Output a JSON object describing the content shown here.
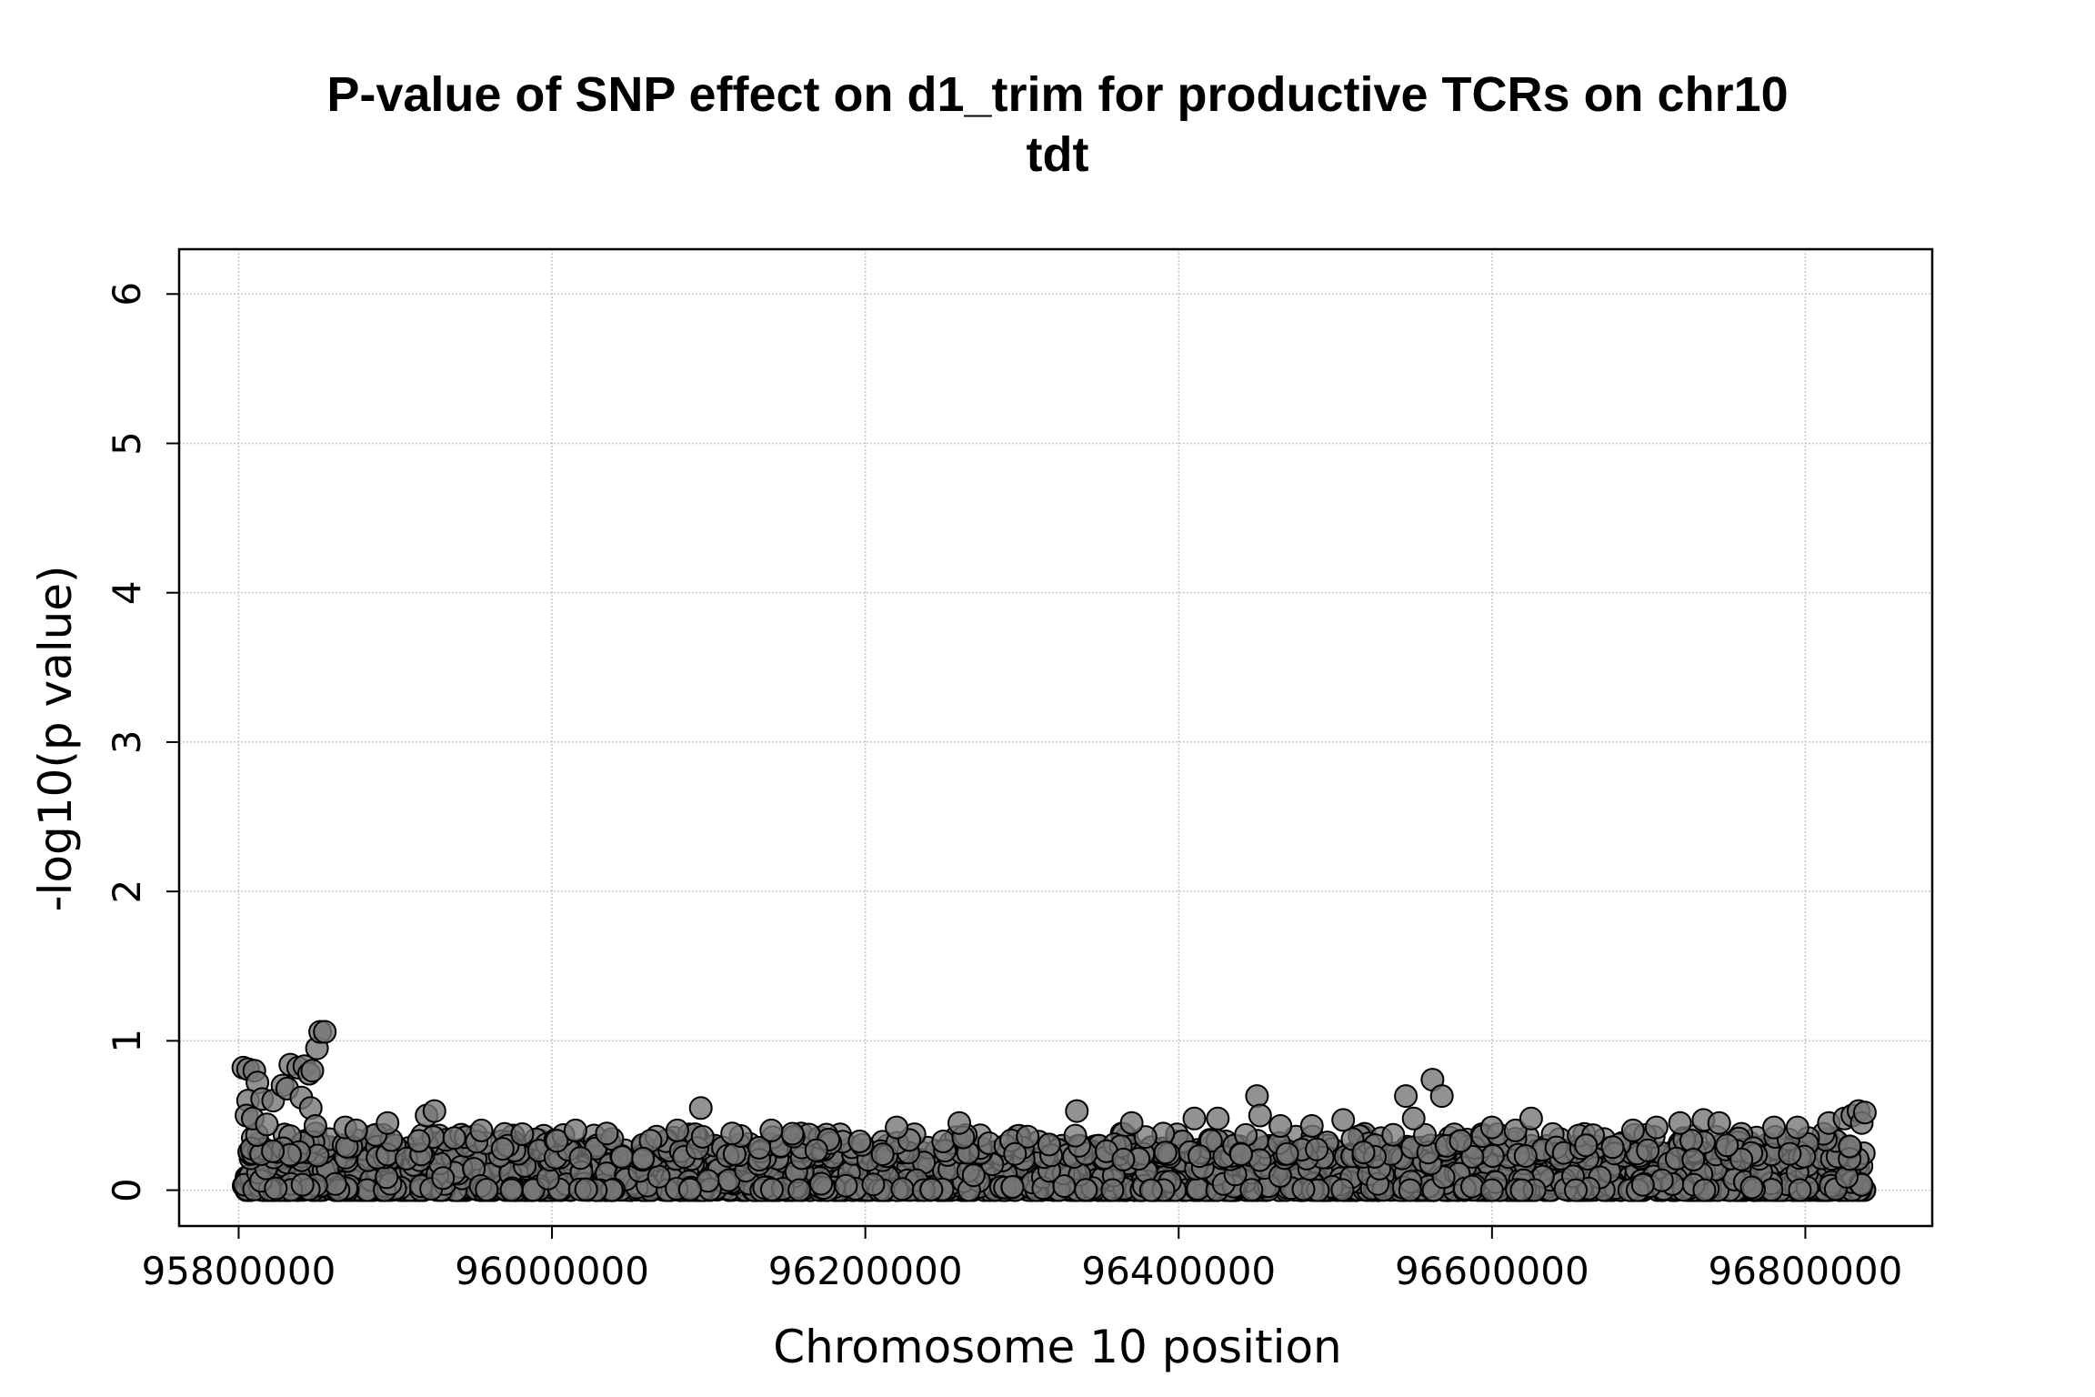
{
  "chart_data": {
    "type": "scatter",
    "title": "P-value of SNP effect on d1_trim for productive TCRs on chr10",
    "subtitle": "tdt",
    "xlabel": "Chromosome 10 position",
    "ylabel": "-log10(p value)",
    "xlim": [
      95762000,
      96881000
    ],
    "ylim": [
      -0.24,
      6.3
    ],
    "xticks": [
      95800000,
      96000000,
      96200000,
      96400000,
      96600000,
      96800000
    ],
    "xtick_labels": [
      "95800000",
      "96000000",
      "96200000",
      "96400000",
      "96600000",
      "96800000"
    ],
    "yticks": [
      0,
      1,
      2,
      3,
      4,
      5,
      6
    ],
    "ytick_labels": [
      "0",
      "1",
      "2",
      "3",
      "4",
      "5",
      "6"
    ],
    "grid": true,
    "legend": "none",
    "point_color": "#777777",
    "point_edge_color": "#000000",
    "x_range_of_snps": [
      95803000,
      96838000
    ],
    "bulk_value_range": [
      0.0,
      0.3
    ],
    "notable_points": [
      {
        "x": 95803000,
        "y": 0.82
      },
      {
        "x": 95806000,
        "y": 0.81
      },
      {
        "x": 95810000,
        "y": 0.8
      },
      {
        "x": 95812000,
        "y": 0.72
      },
      {
        "x": 95806000,
        "y": 0.6
      },
      {
        "x": 95815000,
        "y": 0.61
      },
      {
        "x": 95805000,
        "y": 0.5
      },
      {
        "x": 95809000,
        "y": 0.48
      },
      {
        "x": 95818000,
        "y": 0.44
      },
      {
        "x": 95822000,
        "y": 0.6
      },
      {
        "x": 95828000,
        "y": 0.7
      },
      {
        "x": 95831000,
        "y": 0.68
      },
      {
        "x": 95833000,
        "y": 0.84
      },
      {
        "x": 95838000,
        "y": 0.82
      },
      {
        "x": 95842000,
        "y": 0.83
      },
      {
        "x": 95845000,
        "y": 0.78
      },
      {
        "x": 95847000,
        "y": 0.8
      },
      {
        "x": 95850000,
        "y": 0.95
      },
      {
        "x": 95852000,
        "y": 1.06
      },
      {
        "x": 95855000,
        "y": 1.06
      },
      {
        "x": 95840000,
        "y": 0.62
      },
      {
        "x": 95846000,
        "y": 0.55
      },
      {
        "x": 95849000,
        "y": 0.43
      },
      {
        "x": 95868000,
        "y": 0.42
      },
      {
        "x": 95875000,
        "y": 0.4
      },
      {
        "x": 95895000,
        "y": 0.45
      },
      {
        "x": 95920000,
        "y": 0.5
      },
      {
        "x": 95925000,
        "y": 0.53
      },
      {
        "x": 95915000,
        "y": 0.33
      },
      {
        "x": 95955000,
        "y": 0.4
      },
      {
        "x": 96015000,
        "y": 0.4
      },
      {
        "x": 96035000,
        "y": 0.38
      },
      {
        "x": 96080000,
        "y": 0.4
      },
      {
        "x": 96095000,
        "y": 0.55
      },
      {
        "x": 96115000,
        "y": 0.38
      },
      {
        "x": 96140000,
        "y": 0.4
      },
      {
        "x": 96220000,
        "y": 0.42
      },
      {
        "x": 96260000,
        "y": 0.45
      },
      {
        "x": 96335000,
        "y": 0.53
      },
      {
        "x": 96370000,
        "y": 0.45
      },
      {
        "x": 96410000,
        "y": 0.48
      },
      {
        "x": 96425000,
        "y": 0.48
      },
      {
        "x": 96450000,
        "y": 0.63
      },
      {
        "x": 96452000,
        "y": 0.5
      },
      {
        "x": 96465000,
        "y": 0.43
      },
      {
        "x": 96485000,
        "y": 0.43
      },
      {
        "x": 96505000,
        "y": 0.47
      },
      {
        "x": 96545000,
        "y": 0.63
      },
      {
        "x": 96550000,
        "y": 0.48
      },
      {
        "x": 96562000,
        "y": 0.74
      },
      {
        "x": 96568000,
        "y": 0.63
      },
      {
        "x": 96580000,
        "y": 0.33
      },
      {
        "x": 96600000,
        "y": 0.42
      },
      {
        "x": 96615000,
        "y": 0.4
      },
      {
        "x": 96625000,
        "y": 0.48
      },
      {
        "x": 96660000,
        "y": 0.3
      },
      {
        "x": 96690000,
        "y": 0.4
      },
      {
        "x": 96705000,
        "y": 0.42
      },
      {
        "x": 96720000,
        "y": 0.45
      },
      {
        "x": 96735000,
        "y": 0.47
      },
      {
        "x": 96745000,
        "y": 0.45
      },
      {
        "x": 96750000,
        "y": 0.3
      },
      {
        "x": 96780000,
        "y": 0.42
      },
      {
        "x": 96795000,
        "y": 0.42
      },
      {
        "x": 96815000,
        "y": 0.45
      },
      {
        "x": 96825000,
        "y": 0.48
      },
      {
        "x": 96830000,
        "y": 0.5
      },
      {
        "x": 96834000,
        "y": 0.53
      },
      {
        "x": 96836000,
        "y": 0.45
      },
      {
        "x": 96838000,
        "y": 0.52
      }
    ]
  }
}
